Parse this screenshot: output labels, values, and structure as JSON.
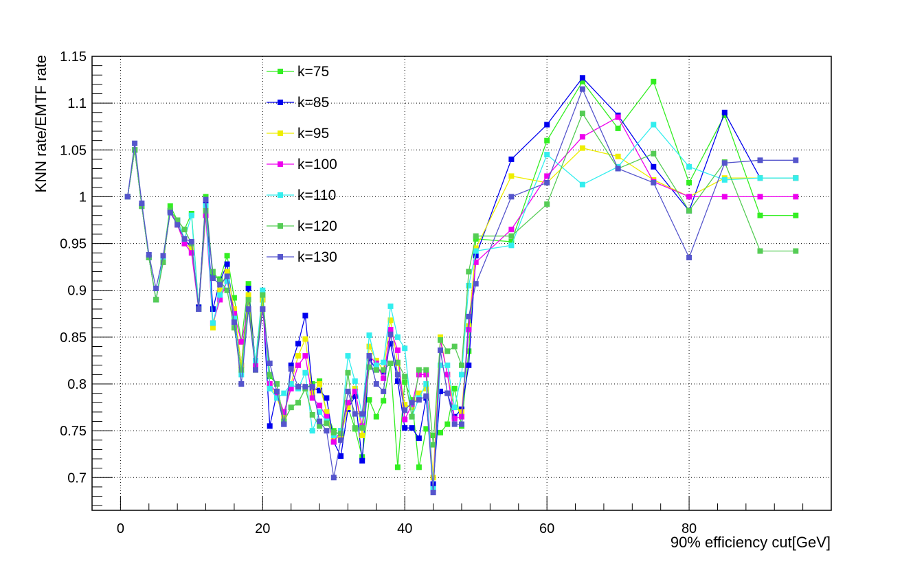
{
  "chart_data": {
    "type": "line",
    "title": "",
    "xlabel": "90% efficiency cut[GeV]",
    "ylabel": "KNN rate/EMTF rate",
    "xlim": [
      -4,
      100
    ],
    "ylim": [
      0.665,
      1.15
    ],
    "x_ticks": [
      0,
      20,
      40,
      60,
      80
    ],
    "y_ticks": [
      0.7,
      0.75,
      0.8,
      0.85,
      0.9,
      0.95,
      1,
      1.05,
      1.1,
      1.15
    ],
    "y_tick_labels": [
      "0.7",
      "0.75",
      "0.8",
      "0.85",
      "0.9",
      "0.95",
      "1",
      "1.05",
      "1.1",
      "1.15"
    ],
    "grid": true,
    "legend_position": "top-center",
    "x": [
      1,
      2,
      3,
      4,
      5,
      6,
      7,
      8,
      9,
      10,
      11,
      12,
      13,
      14,
      15,
      16,
      17,
      18,
      19,
      20,
      21,
      22,
      23,
      24,
      25,
      26,
      27,
      28,
      29,
      30,
      31,
      32,
      33,
      34,
      35,
      36,
      37,
      38,
      39,
      40,
      41,
      42,
      43,
      44,
      45,
      46,
      47,
      48,
      49,
      50,
      55,
      60,
      65,
      70,
      75,
      80,
      85,
      90,
      95
    ],
    "series": [
      {
        "name": "k=75",
        "color": "#33ee22",
        "values": [
          1.0,
          1.05,
          0.99,
          0.935,
          0.89,
          0.935,
          0.99,
          0.975,
          0.965,
          0.982,
          0.882,
          1.0,
          0.915,
          0.912,
          0.937,
          0.892,
          0.845,
          0.907,
          0.82,
          0.895,
          0.808,
          0.8,
          0.76,
          0.775,
          0.78,
          0.795,
          0.8,
          0.803,
          0.77,
          0.75,
          0.745,
          0.775,
          0.752,
          0.722,
          0.783,
          0.765,
          0.782,
          0.822,
          0.711,
          0.802,
          0.783,
          0.711,
          0.752,
          0.745,
          0.748,
          0.757,
          0.795,
          0.755,
          0.835,
          0.955,
          0.952,
          1.06,
          1.123,
          1.073,
          1.123,
          1.015,
          1.087,
          0.98,
          0.98
        ]
      },
      {
        "name": "k=85",
        "color": "#0000ee",
        "values": [
          1.0,
          1.05,
          0.99,
          0.935,
          0.89,
          0.935,
          0.985,
          0.975,
          0.955,
          0.945,
          0.882,
          0.995,
          0.88,
          0.91,
          0.928,
          0.875,
          0.82,
          0.902,
          0.82,
          0.89,
          0.755,
          0.79,
          0.757,
          0.82,
          0.843,
          0.873,
          0.795,
          0.793,
          0.785,
          0.738,
          0.723,
          0.773,
          0.787,
          0.718,
          0.827,
          0.815,
          0.813,
          0.843,
          0.803,
          0.753,
          0.753,
          0.742,
          0.785,
          0.693,
          0.792,
          0.79,
          0.765,
          0.773,
          0.82,
          0.937,
          1.04,
          1.077,
          1.127,
          1.087,
          1.032,
          0.985,
          1.09,
          1.02,
          1.02
        ]
      },
      {
        "name": "k=95",
        "color": "#eeee00",
        "values": [
          1.0,
          1.05,
          0.99,
          0.935,
          0.89,
          0.935,
          0.985,
          0.97,
          0.95,
          0.945,
          0.88,
          0.99,
          0.86,
          0.9,
          0.92,
          0.88,
          0.82,
          0.895,
          0.815,
          0.89,
          0.8,
          0.785,
          0.765,
          0.8,
          0.83,
          0.848,
          0.79,
          0.8,
          0.77,
          0.74,
          0.745,
          0.775,
          0.795,
          0.745,
          0.84,
          0.825,
          0.815,
          0.868,
          0.822,
          0.778,
          0.775,
          0.79,
          0.795,
          0.7,
          0.85,
          0.81,
          0.775,
          0.77,
          0.862,
          0.945,
          1.022,
          1.015,
          1.052,
          1.043,
          1.018,
          1.0,
          1.02,
          1.02,
          1.02
        ]
      },
      {
        "name": "k=100",
        "color": "#ee00ee",
        "values": [
          1.0,
          1.05,
          0.99,
          0.935,
          0.89,
          0.93,
          0.985,
          0.97,
          0.95,
          0.94,
          0.88,
          0.98,
          0.865,
          0.89,
          0.91,
          0.875,
          0.845,
          0.88,
          0.82,
          0.88,
          0.8,
          0.79,
          0.77,
          0.795,
          0.82,
          0.83,
          0.785,
          0.777,
          0.765,
          0.738,
          0.75,
          0.78,
          0.792,
          0.755,
          0.83,
          0.822,
          0.806,
          0.858,
          0.836,
          0.762,
          0.778,
          0.81,
          0.81,
          0.687,
          0.847,
          0.81,
          0.763,
          0.765,
          0.858,
          0.93,
          0.965,
          1.022,
          1.064,
          1.085,
          1.016,
          1.0,
          1.0,
          1.0,
          1.0
        ]
      },
      {
        "name": "k=110",
        "color": "#33eeee",
        "values": [
          1.0,
          1.05,
          0.99,
          0.935,
          0.89,
          0.935,
          0.985,
          0.975,
          0.955,
          0.98,
          0.88,
          0.99,
          0.865,
          0.895,
          0.91,
          0.87,
          0.81,
          0.88,
          0.825,
          0.9,
          0.795,
          0.785,
          0.79,
          0.8,
          0.795,
          0.812,
          0.75,
          0.77,
          0.76,
          0.745,
          0.75,
          0.83,
          0.803,
          0.767,
          0.852,
          0.82,
          0.823,
          0.883,
          0.85,
          0.838,
          0.765,
          0.785,
          0.8,
          0.688,
          0.82,
          0.82,
          0.775,
          0.81,
          0.905,
          0.942,
          0.948,
          1.045,
          1.013,
          1.032,
          1.077,
          1.032,
          1.018,
          1.02,
          1.02
        ]
      },
      {
        "name": "k=120",
        "color": "#55cc55",
        "values": [
          1.0,
          1.05,
          0.99,
          0.935,
          0.89,
          0.93,
          0.985,
          0.975,
          0.965,
          0.95,
          0.88,
          0.985,
          0.92,
          0.91,
          0.9,
          0.86,
          0.815,
          0.89,
          0.815,
          0.895,
          0.81,
          0.8,
          0.76,
          0.775,
          0.78,
          0.795,
          0.767,
          0.755,
          0.758,
          0.748,
          0.747,
          0.812,
          0.753,
          0.753,
          0.818,
          0.815,
          0.815,
          0.822,
          0.823,
          0.808,
          0.765,
          0.815,
          0.815,
          0.735,
          0.847,
          0.835,
          0.84,
          0.82,
          0.92,
          0.958,
          0.958,
          0.992,
          1.089,
          1.03,
          1.046,
          0.985,
          1.037,
          0.942,
          0.942
        ]
      },
      {
        "name": "k=130",
        "color": "#5555cc",
        "values": [
          1.0,
          1.057,
          0.993,
          0.938,
          0.902,
          0.937,
          0.983,
          0.97,
          0.955,
          0.952,
          0.88,
          0.997,
          0.913,
          0.906,
          0.915,
          0.866,
          0.8,
          0.88,
          0.815,
          0.88,
          0.822,
          0.792,
          0.757,
          0.816,
          0.797,
          0.797,
          0.797,
          0.76,
          0.75,
          0.7,
          0.74,
          0.792,
          0.768,
          0.768,
          0.83,
          0.8,
          0.792,
          0.853,
          0.81,
          0.772,
          0.78,
          0.783,
          0.787,
          0.684,
          0.836,
          0.79,
          0.757,
          0.757,
          0.872,
          0.907,
          1.0,
          1.015,
          1.115,
          1.03,
          1.015,
          0.935,
          1.036,
          1.039,
          1.039
        ]
      }
    ]
  }
}
